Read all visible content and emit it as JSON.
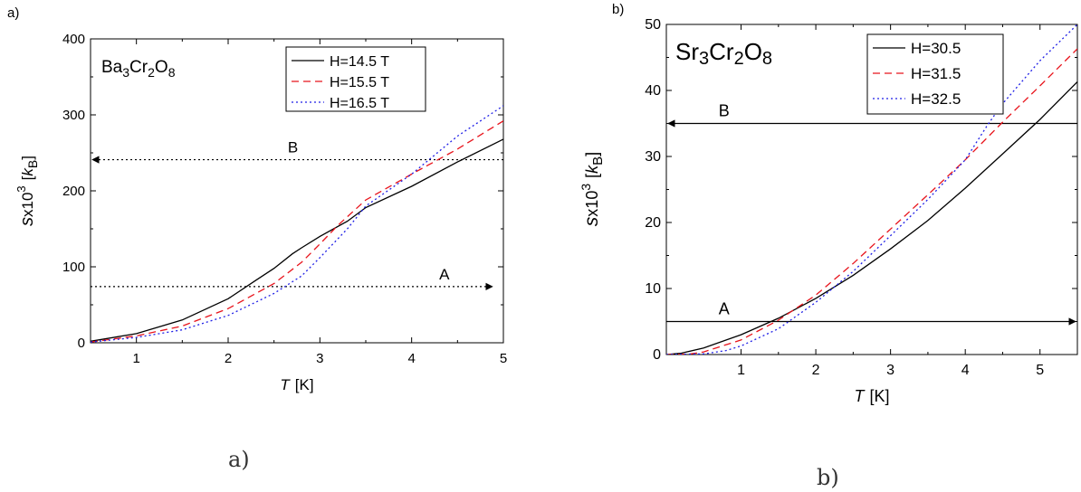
{
  "panel_tags": [
    "a)",
    "b)"
  ],
  "captions": [
    "a)",
    "b)"
  ],
  "colors": {
    "black": "#000000",
    "red": "#e8141c",
    "blue": "#1f1fe6"
  },
  "chart_data": [
    {
      "type": "line",
      "compound": {
        "base1": "Ba",
        "sub1": "3",
        "base2": "Cr",
        "sub2": "2",
        "base3": "O",
        "sub3": "8"
      },
      "xlabel": "T  [K]",
      "ylabel": "s x10^3 [kB]",
      "xlim": [
        0.5,
        5.0
      ],
      "ylim": [
        0,
        400
      ],
      "xticks": [
        1,
        2,
        3,
        4,
        5
      ],
      "yticks": [
        0,
        100,
        200,
        300,
        400
      ],
      "legend_position": "top-right",
      "series": [
        {
          "name": "H=14.5 T",
          "style": "solid",
          "color": "#000000",
          "x": [
            0.5,
            1.0,
            1.5,
            2.0,
            2.3,
            2.5,
            2.7,
            2.8,
            3.0,
            3.3,
            3.5,
            4.0,
            4.5,
            5.0
          ],
          "y": [
            2,
            12,
            30,
            58,
            82,
            98,
            117,
            125,
            140,
            160,
            178,
            206,
            238,
            268
          ]
        },
        {
          "name": "H=15.5 T",
          "style": "dashed",
          "color": "#e8141c",
          "x": [
            0.5,
            1.0,
            1.5,
            2.0,
            2.5,
            2.8,
            3.0,
            3.2,
            3.5,
            4.0,
            4.5,
            5.0
          ],
          "y": [
            1,
            9,
            22,
            45,
            78,
            106,
            130,
            155,
            188,
            222,
            255,
            292
          ]
        },
        {
          "name": "H=16.5 T",
          "style": "dotted",
          "color": "#1f1fe6",
          "x": [
            0.5,
            1.0,
            1.5,
            2.0,
            2.5,
            2.8,
            3.0,
            3.3,
            3.5,
            4.0,
            4.5,
            5.0
          ],
          "y": [
            1,
            7,
            17,
            36,
            65,
            88,
            112,
            150,
            180,
            222,
            272,
            312
          ]
        }
      ],
      "annotations": [
        {
          "label": "A",
          "y": 74,
          "x_from": 0.5,
          "x_to": 4.9,
          "direction": "right",
          "style": "dotted",
          "label_x": 4.3
        },
        {
          "label": "B",
          "y": 241,
          "x_from": 5.0,
          "x_to": 0.5,
          "direction": "left",
          "style": "dotted",
          "label_x": 2.65
        }
      ]
    },
    {
      "type": "line",
      "compound": {
        "base1": "Sr",
        "sub1": "3",
        "base2": "Cr",
        "sub2": "2",
        "base3": "O",
        "sub3": "8"
      },
      "xlabel": "T  [K]",
      "ylabel": "s x10^3 [kB]",
      "xlim": [
        0.0,
        5.5
      ],
      "ylim": [
        0,
        50
      ],
      "xticks": [
        1,
        2,
        3,
        4,
        5
      ],
      "yticks": [
        0,
        10,
        20,
        30,
        40,
        50
      ],
      "legend_position": "top-right",
      "series": [
        {
          "name": "H=30.5",
          "style": "solid",
          "color": "#000000",
          "x": [
            0.0,
            0.2,
            0.5,
            1.0,
            1.5,
            2.0,
            2.5,
            3.0,
            3.5,
            4.0,
            4.5,
            5.0,
            5.5
          ],
          "y": [
            0,
            0.2,
            1.0,
            3.0,
            5.5,
            8.5,
            12.0,
            16.0,
            20.3,
            25.2,
            30.4,
            35.6,
            41.3
          ]
        },
        {
          "name": "H=31.5",
          "style": "dashed",
          "color": "#e8141c",
          "x": [
            0.0,
            0.3,
            0.5,
            1.0,
            1.5,
            2.0,
            2.5,
            3.0,
            3.5,
            4.0,
            4.5,
            5.0,
            5.5
          ],
          "y": [
            0,
            0.05,
            0.4,
            2.2,
            5.2,
            9.0,
            13.8,
            19.0,
            24.2,
            29.5,
            35.2,
            40.7,
            46.3
          ]
        },
        {
          "name": "H=32.5",
          "style": "dotted",
          "color": "#1f1fe6",
          "x": [
            0.0,
            0.5,
            0.8,
            1.0,
            1.5,
            2.0,
            2.5,
            3.0,
            3.5,
            4.0,
            4.3,
            4.5,
            5.0,
            5.5
          ],
          "y": [
            0,
            0.1,
            0.6,
            1.3,
            3.9,
            7.9,
            12.6,
            18.0,
            23.5,
            29.5,
            34.8,
            38.0,
            44.5,
            50.0
          ]
        }
      ],
      "annotations": [
        {
          "label": "A",
          "y": 5,
          "x_from": 0.0,
          "x_to": 5.5,
          "direction": "right",
          "style": "solid",
          "label_x": 0.7
        },
        {
          "label": "B",
          "y": 35,
          "x_from": 5.5,
          "x_to": 0.0,
          "direction": "left",
          "style": "solid",
          "label_x": 0.7
        }
      ]
    }
  ]
}
